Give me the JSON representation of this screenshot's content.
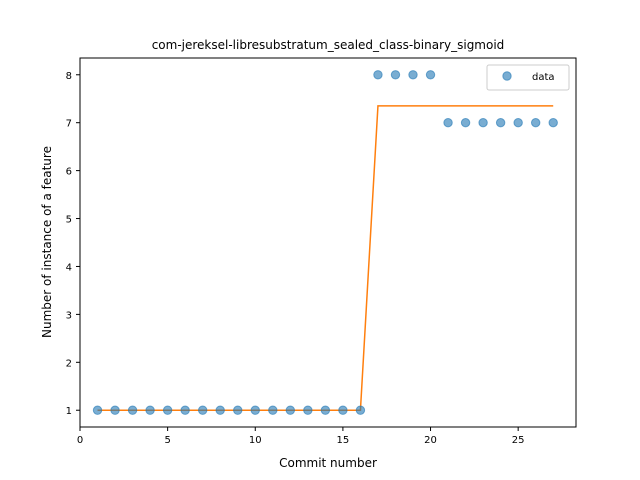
{
  "chart_data": {
    "type": "scatter",
    "title": "com-jereksel-libresubstratum_sealed_class-binary_sigmoid",
    "xlabel": "Commit number",
    "ylabel": "Number of instance of a feature",
    "xlim": [
      0,
      28.3
    ],
    "ylim": [
      0.65,
      8.35
    ],
    "xticks": [
      0,
      5,
      10,
      15,
      20,
      25
    ],
    "yticks": [
      1,
      2,
      3,
      4,
      5,
      6,
      7,
      8
    ],
    "grid": false,
    "legend": {
      "placement": "top-right",
      "entries": [
        "data"
      ]
    },
    "series": [
      {
        "name": "data",
        "kind": "scatter",
        "color": "#1f77b4",
        "x": [
          1,
          2,
          3,
          4,
          5,
          6,
          7,
          8,
          9,
          10,
          11,
          12,
          13,
          14,
          15,
          16,
          17,
          18,
          19,
          20,
          21,
          22,
          23,
          24,
          25,
          26,
          27
        ],
        "y": [
          1,
          1,
          1,
          1,
          1,
          1,
          1,
          1,
          1,
          1,
          1,
          1,
          1,
          1,
          1,
          1,
          8,
          8,
          8,
          8,
          7,
          7,
          7,
          7,
          7,
          7,
          7
        ]
      },
      {
        "kind": "line",
        "color": "#ff7f0e",
        "x": [
          1,
          16,
          17,
          27
        ],
        "y": [
          1,
          1,
          7.35,
          7.35
        ]
      }
    ]
  }
}
